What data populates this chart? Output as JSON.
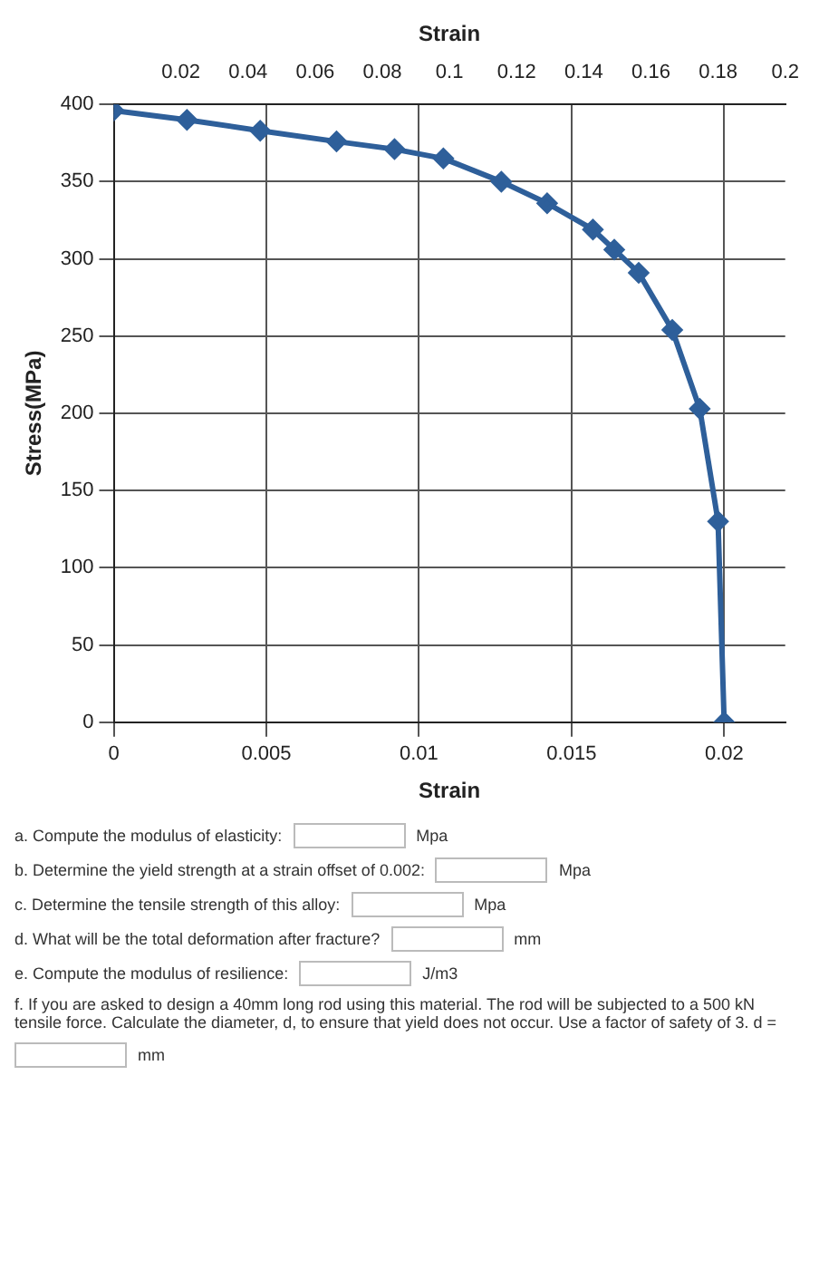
{
  "chart_data": {
    "type": "line",
    "xlabel": "Strain",
    "ylabel": "Stress(MPa)",
    "x2label": "Strain",
    "x": [
      0,
      0.0024,
      0.0048,
      0.0073,
      0.0092,
      0.0108,
      0.0127,
      0.0142,
      0.0157,
      0.0164,
      0.0172,
      0.0183,
      0.0192,
      0.0198,
      0.02
    ],
    "series": [
      {
        "color": "#2e5f9a",
        "values": [
          396,
          390,
          383,
          376,
          371,
          365,
          350,
          336,
          319,
          306,
          291,
          254,
          203,
          130,
          0
        ]
      }
    ],
    "xlim": [
      0,
      0.022
    ],
    "xticks": [
      0,
      0.005,
      0.01,
      0.015,
      0.02
    ],
    "x2lim": [
      0,
      0.2
    ],
    "x2ticks": [
      0.02,
      0.04,
      0.06,
      0.08,
      0.1,
      0.12,
      0.14,
      0.16,
      0.18,
      0.2
    ],
    "ylim": [
      0,
      400
    ],
    "yticks": [
      0,
      50,
      100,
      150,
      200,
      250,
      300,
      350,
      400
    ],
    "grid": true,
    "legend": false,
    "marker": "diamond",
    "line_style": "solid",
    "annotations": [
      "a. Compute the modulus of elasticity:",
      "Mpa",
      "b. Determine the yield strength at a strain offset of 0.002:",
      "Mpa",
      "c. Determine the tensile strength of this alloy:",
      "Mpa",
      "d. What will be the total deformation after fracture?",
      "mm",
      "e. Compute the modulus of resilience:",
      "J/m3",
      "f. If you are asked to design a 40mm long rod using this material. The rod will be subjected to a 500 kN tensile force. Calculate the diameter, d, to ensure that yield does not occur. Use a factor of safety of 3. d =",
      "mm"
    ]
  }
}
